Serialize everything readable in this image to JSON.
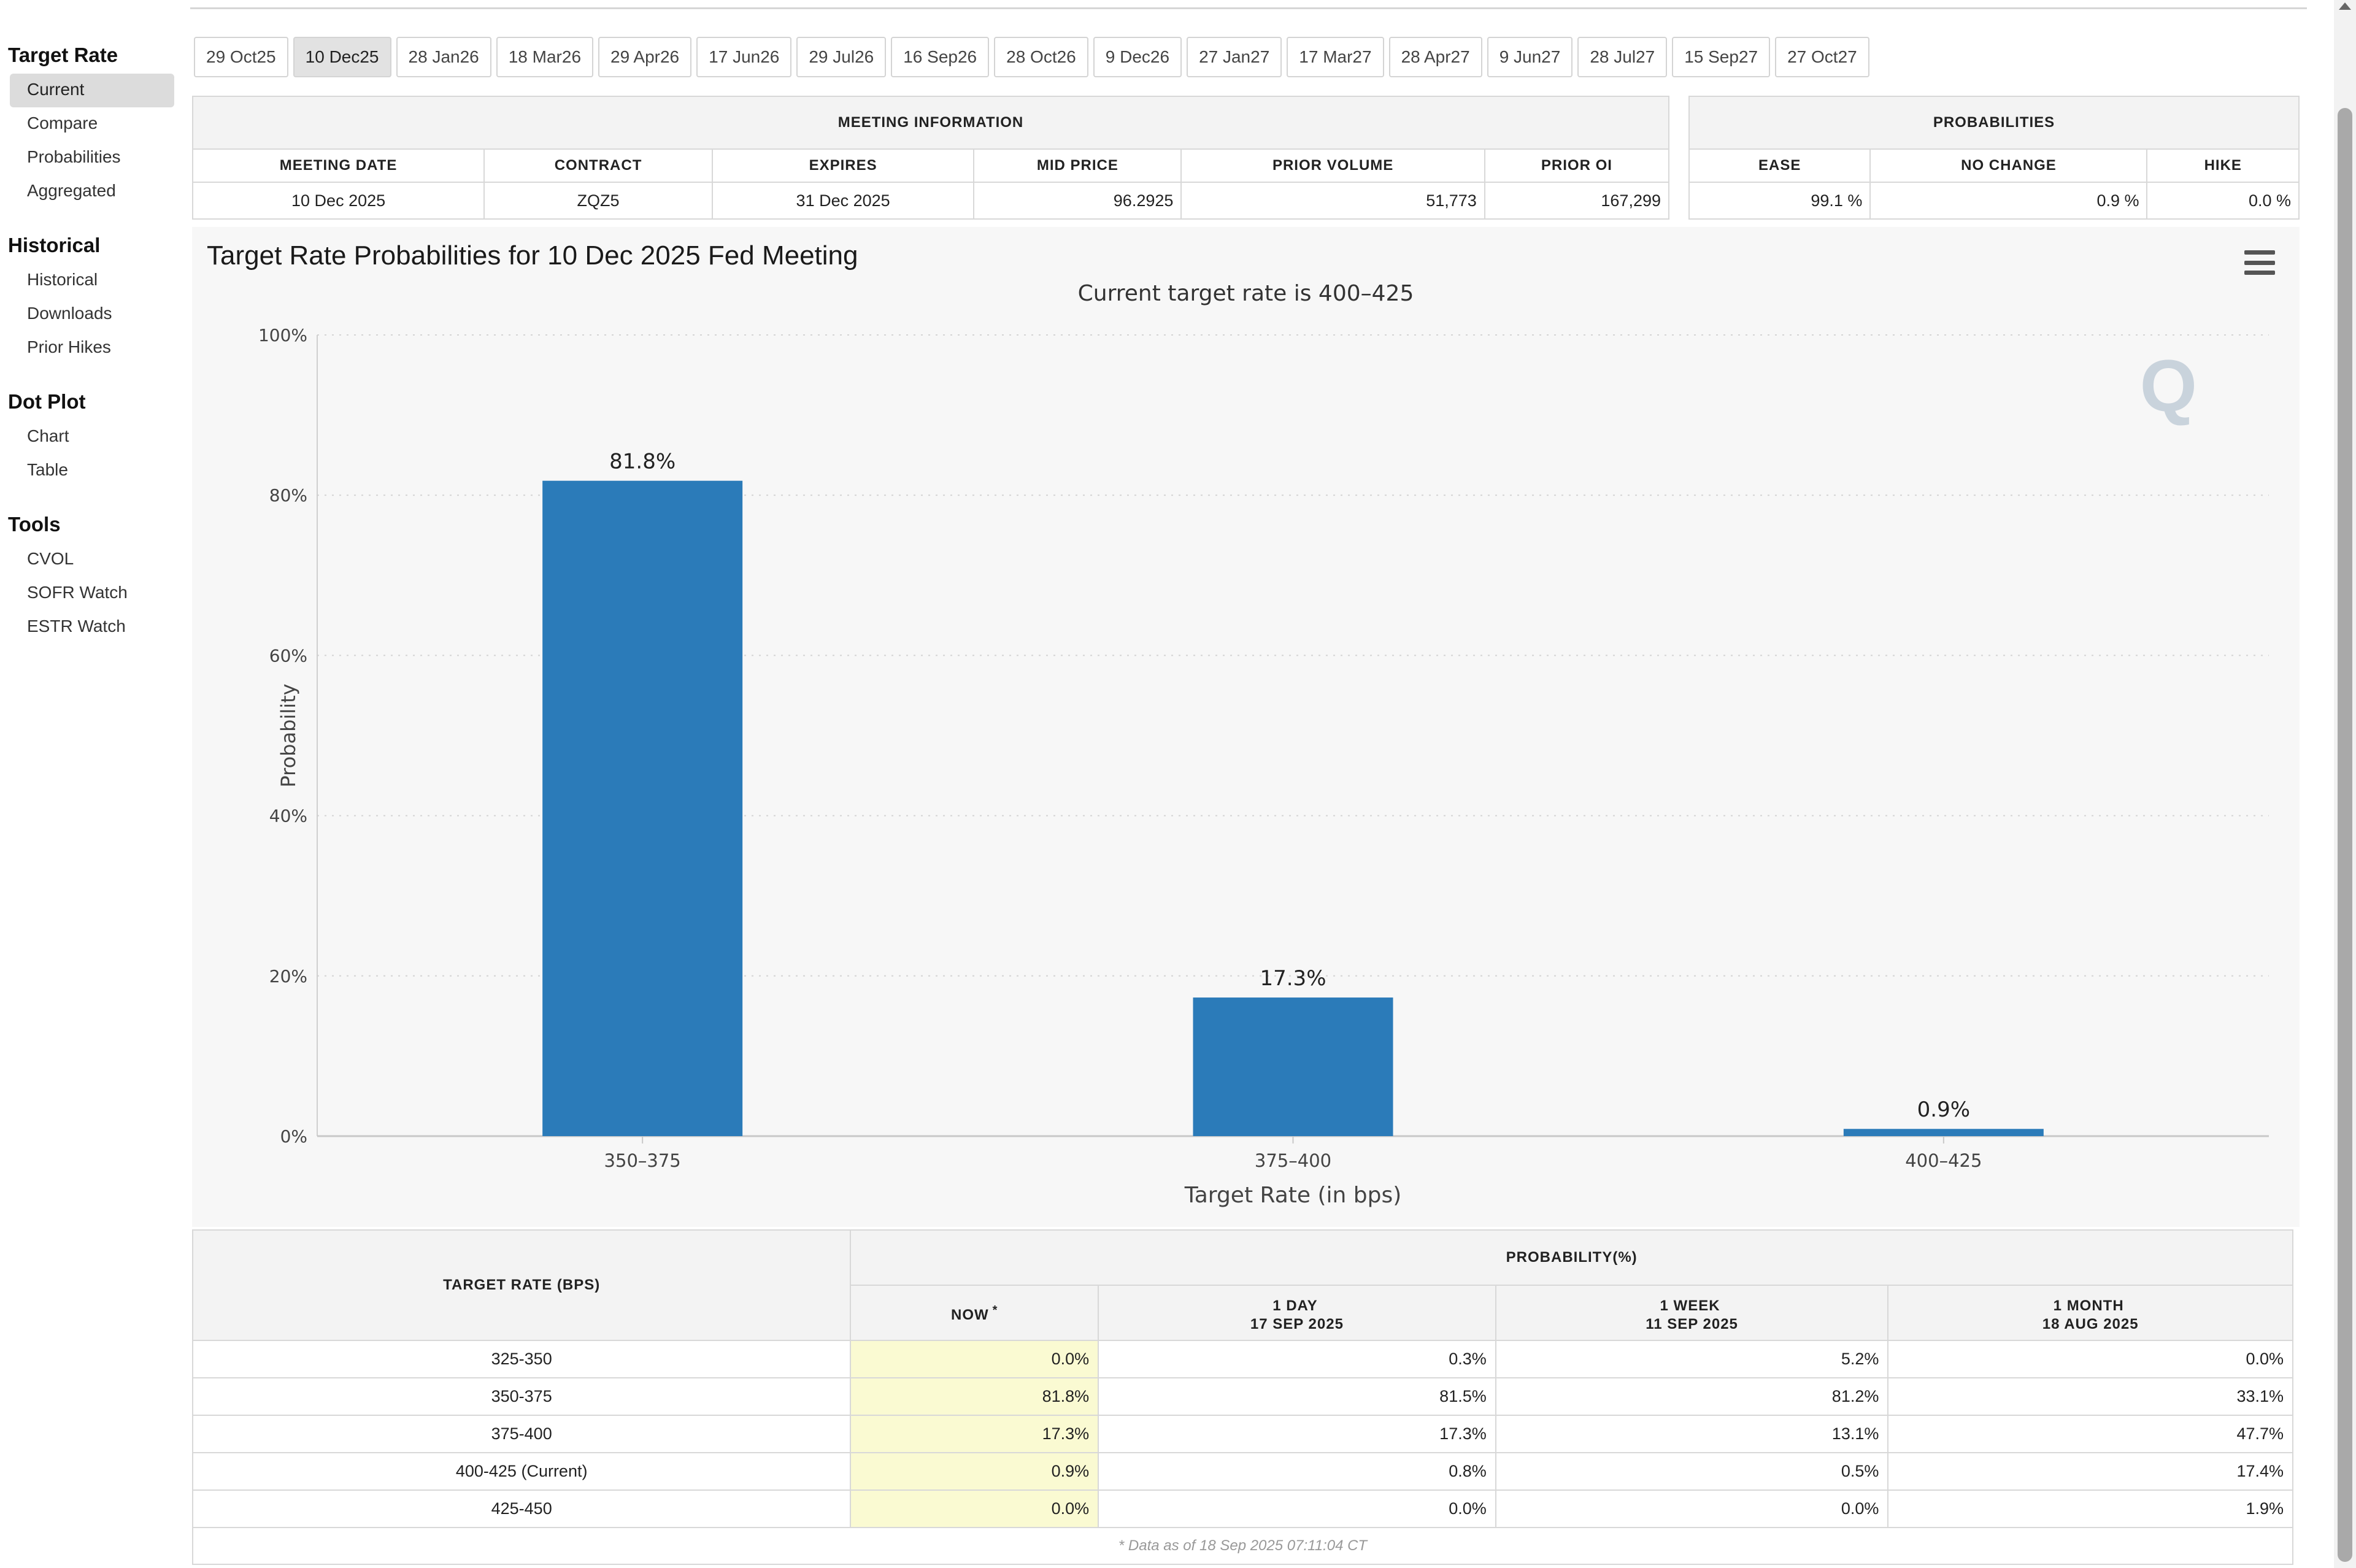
{
  "sidebar": {
    "sections": [
      {
        "heading": "Target Rate",
        "items": [
          "Current",
          "Compare",
          "Probabilities",
          "Aggregated"
        ]
      },
      {
        "heading": "Historical",
        "items": [
          "Historical",
          "Downloads",
          "Prior Hikes"
        ]
      },
      {
        "heading": "Dot Plot",
        "items": [
          "Chart",
          "Table"
        ]
      },
      {
        "heading": "Tools",
        "items": [
          "CVOL",
          "SOFR Watch",
          "ESTR Watch"
        ]
      }
    ],
    "active_item": "Current"
  },
  "tabs": {
    "items": [
      "29 Oct25",
      "10 Dec25",
      "28 Jan26",
      "18 Mar26",
      "29 Apr26",
      "17 Jun26",
      "29 Jul26",
      "16 Sep26",
      "28 Oct26",
      "9 Dec26",
      "27 Jan27",
      "17 Mar27",
      "28 Apr27",
      "9 Jun27",
      "28 Jul27",
      "15 Sep27",
      "27 Oct27"
    ],
    "active": "10 Dec25"
  },
  "meeting_info": {
    "caption": "MEETING INFORMATION",
    "headers": [
      "MEETING DATE",
      "CONTRACT",
      "EXPIRES",
      "MID PRICE",
      "PRIOR VOLUME",
      "PRIOR OI"
    ],
    "values": [
      "10 Dec 2025",
      "ZQZ5",
      "31 Dec 2025",
      "96.2925",
      "51,773",
      "167,299"
    ]
  },
  "probabilities_info": {
    "caption": "PROBABILITIES",
    "headers": [
      "EASE",
      "NO CHANGE",
      "HIKE"
    ],
    "values": [
      "99.1 %",
      "0.9 %",
      "0.0 %"
    ]
  },
  "chart_data": {
    "type": "bar",
    "title": "Target Rate Probabilities for 10 Dec 2025 Fed Meeting",
    "subtitle": "Current target rate is 400–425",
    "xlabel": "Target Rate (in bps)",
    "ylabel": "Probability",
    "categories": [
      "350–375",
      "375–400",
      "400–425"
    ],
    "values": [
      81.8,
      17.3,
      0.9
    ],
    "data_labels": [
      "81.8%",
      "17.3%",
      "0.9%"
    ],
    "y_ticks": [
      0,
      20,
      40,
      60,
      80,
      100
    ],
    "y_tick_labels": [
      "0%",
      "20%",
      "40%",
      "60%",
      "80%",
      "100%"
    ],
    "ylim": [
      0,
      100
    ],
    "grid": true,
    "bar_color": "#2b7bb9"
  },
  "prob_table": {
    "col_header": "TARGET RATE (BPS)",
    "group_header": "PROBABILITY(%)",
    "sub_headers": [
      {
        "line1": "NOW",
        "line2": "",
        "mark": "*"
      },
      {
        "line1": "1 DAY",
        "line2": "17 SEP 2025",
        "mark": ""
      },
      {
        "line1": "1 WEEK",
        "line2": "11 SEP 2025",
        "mark": ""
      },
      {
        "line1": "1 MONTH",
        "line2": "18 AUG 2025",
        "mark": ""
      }
    ],
    "rows": [
      {
        "rate": "325-350",
        "now": "0.0%",
        "day": "0.3%",
        "week": "5.2%",
        "month": "0.0%"
      },
      {
        "rate": "350-375",
        "now": "81.8%",
        "day": "81.5%",
        "week": "81.2%",
        "month": "33.1%"
      },
      {
        "rate": "375-400",
        "now": "17.3%",
        "day": "17.3%",
        "week": "13.1%",
        "month": "47.7%"
      },
      {
        "rate": "400-425 (Current)",
        "now": "0.9%",
        "day": "0.8%",
        "week": "0.5%",
        "month": "17.4%"
      },
      {
        "rate": "425-450",
        "now": "0.0%",
        "day": "0.0%",
        "week": "0.0%",
        "month": "1.9%"
      }
    ],
    "footnote": "* Data as of 18 Sep 2025 07:11:04 CT"
  }
}
